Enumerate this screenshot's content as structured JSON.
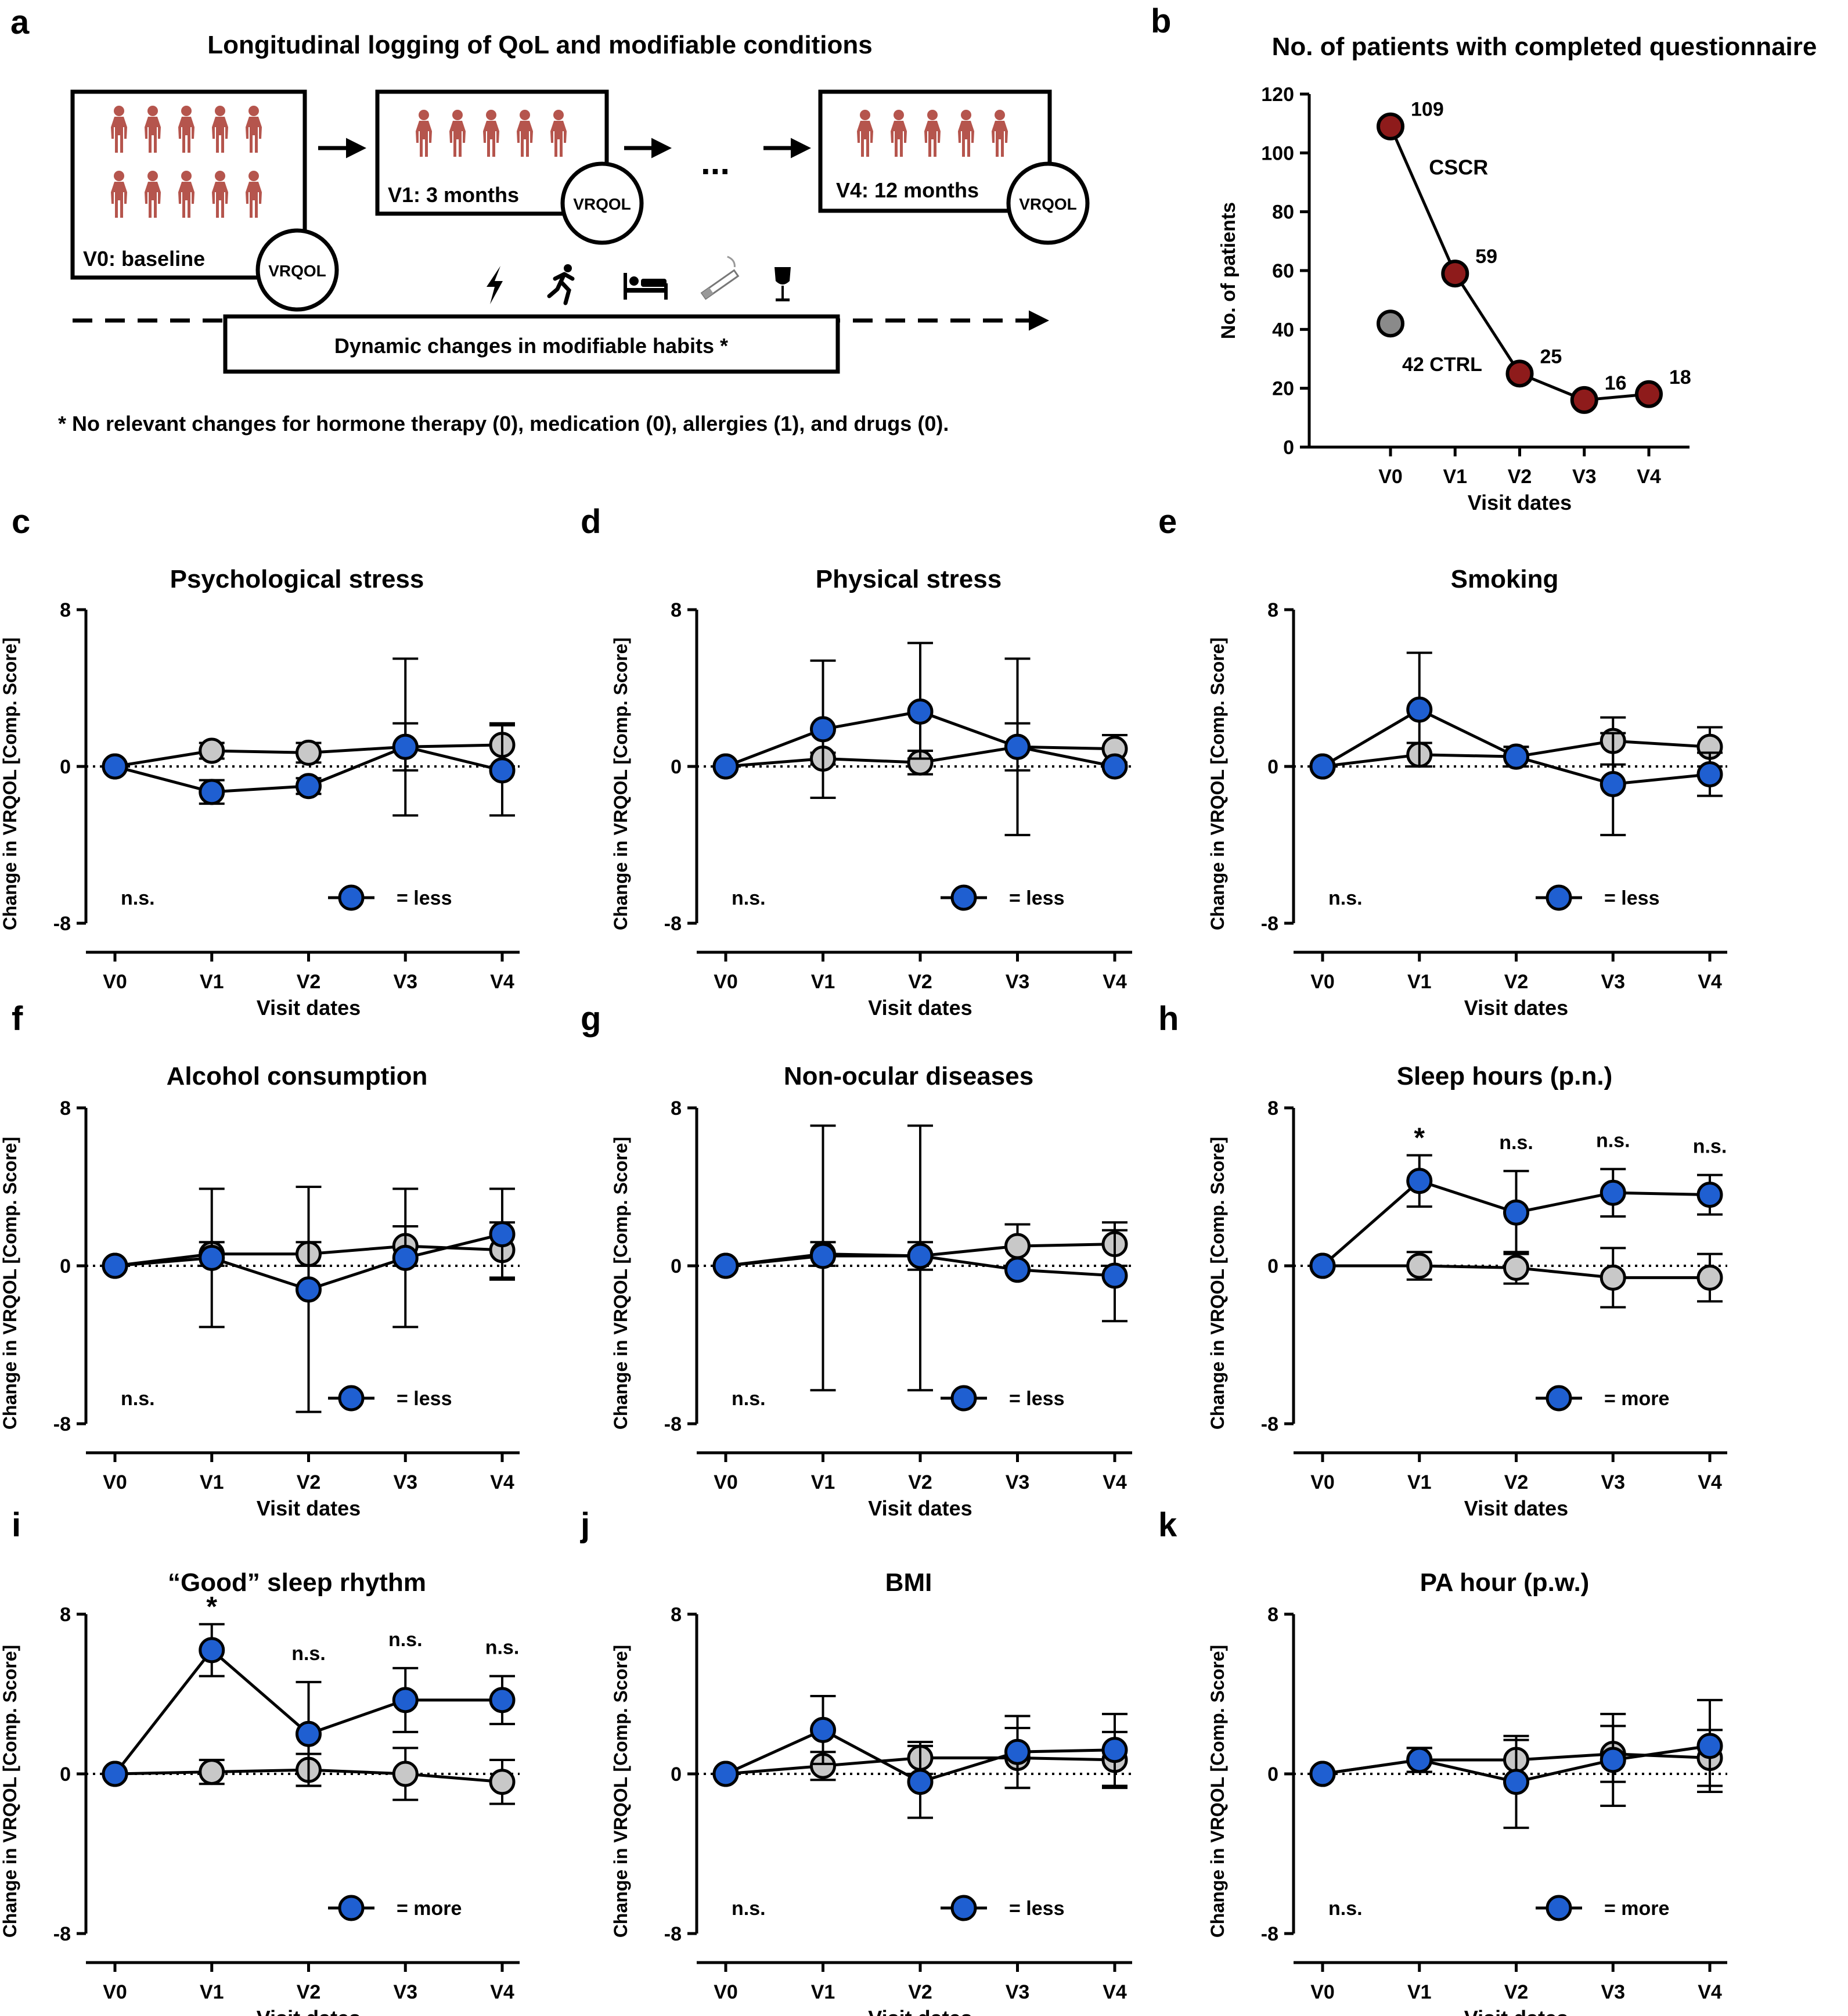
{
  "panel_a": {
    "letter": "a",
    "title": "Longitudinal logging of QoL and modifiable conditions",
    "boxes": [
      {
        "label": "V0: baseline",
        "badge": "VRQOL",
        "figures": 10
      },
      {
        "label": "V1: 3 months",
        "badge": "VRQOL",
        "figures": 5
      },
      {
        "label": "V4:  12 months",
        "badge": "VRQOL",
        "figures": 5
      }
    ],
    "ellipsis": "...",
    "habit_icons": [
      "lightning-icon",
      "running-person-icon",
      "bed-icon",
      "cigarette-icon",
      "wine-glass-icon"
    ],
    "habits_label": "Dynamic changes in modifiable habits *",
    "footnote": "* No relevant changes for hormone therapy (0), medication (0), allergies (1), and drugs (0).",
    "colors": {
      "figure": "#b5554d"
    }
  },
  "chart_data": [
    {
      "id": "b",
      "letter": "b",
      "type": "line",
      "title": "No. of patients with completed questionnaire",
      "xlabel": "Visit dates",
      "ylabel": "No. of patients",
      "categories": [
        "V0",
        "V1",
        "V2",
        "V3",
        "V4"
      ],
      "yticks": [
        "0",
        "20",
        "40",
        "60",
        "80",
        "100",
        "120"
      ],
      "ylim": [
        0,
        120
      ],
      "series": [
        {
          "name": "CSCR",
          "values": [
            109,
            59,
            25,
            16,
            18
          ],
          "labels": [
            "109",
            "59",
            "25",
            "16",
            "18"
          ],
          "color": "#8e1b1b"
        }
      ],
      "ctrl_point": {
        "value": 42,
        "label": "42 CTRL",
        "color": "#8a8a8a"
      },
      "series_label": "CSCR"
    },
    {
      "id": "c",
      "letter": "c",
      "type": "line",
      "title": "Psychological stress",
      "xlabel": "Visit dates",
      "ylabel": "Change in VRQOL [Comp. Score]",
      "categories": [
        "V0",
        "V1",
        "V2",
        "V3",
        "V4"
      ],
      "yticks": [
        "-8",
        "0",
        "8"
      ],
      "ylim": [
        -8,
        8
      ],
      "series": [
        {
          "name": "CTRL",
          "color": "#c8c8c8",
          "values": [
            0,
            0.8,
            0.7,
            1.0,
            1.1
          ],
          "err_low": [
            0,
            0.4,
            0.5,
            1.2,
            1.1
          ],
          "err_high": [
            0,
            0.4,
            0.5,
            1.2,
            1.1
          ]
        },
        {
          "name": "less",
          "color": "#1f5fd1",
          "values": [
            0,
            -1.3,
            -1.0,
            1.0,
            -0.2
          ],
          "err_low": [
            0,
            0.6,
            0.4,
            3.5,
            2.3
          ],
          "err_high": [
            0,
            0.6,
            0.4,
            4.5,
            2.3
          ]
        }
      ],
      "significance": "n.s.",
      "legend_label": "= less",
      "legend_pos": "bottom-right",
      "point_marks": []
    },
    {
      "id": "d",
      "letter": "d",
      "type": "line",
      "title": "Physical stress",
      "xlabel": "Visit dates",
      "ylabel": "Change in VRQOL [Comp. Score]",
      "categories": [
        "V0",
        "V1",
        "V2",
        "V3",
        "V4"
      ],
      "yticks": [
        "-8",
        "0",
        "8"
      ],
      "ylim": [
        -8,
        8
      ],
      "series": [
        {
          "name": "CTRL",
          "color": "#c8c8c8",
          "values": [
            0,
            0.4,
            0.2,
            1.0,
            0.9
          ],
          "err_low": [
            0,
            0.3,
            0.6,
            1.2,
            0.7
          ],
          "err_high": [
            0,
            0.3,
            0.6,
            1.2,
            0.7
          ]
        },
        {
          "name": "less",
          "color": "#1f5fd1",
          "values": [
            0,
            1.9,
            2.8,
            1.0,
            0.0
          ],
          "err_low": [
            0,
            3.5,
            2.4,
            4.5,
            0
          ],
          "err_high": [
            0,
            3.5,
            3.5,
            4.5,
            0
          ]
        }
      ],
      "significance": "n.s.",
      "legend_label": "= less",
      "legend_pos": "bottom-right",
      "point_marks": []
    },
    {
      "id": "e",
      "letter": "e",
      "type": "line",
      "title": "Smoking",
      "xlabel": "Visit dates",
      "ylabel": "Change in VRQOL [Comp. Score]",
      "categories": [
        "V0",
        "V1",
        "V2",
        "V3",
        "V4"
      ],
      "yticks": [
        "-8",
        "0",
        "8"
      ],
      "ylim": [
        -8,
        8
      ],
      "series": [
        {
          "name": "CTRL",
          "color": "#c8c8c8",
          "values": [
            0,
            0.6,
            0.5,
            1.3,
            1.0
          ],
          "err_low": [
            0,
            0.6,
            0.5,
            1.2,
            1.0
          ],
          "err_high": [
            0,
            0.6,
            0.5,
            1.2,
            1.0
          ]
        },
        {
          "name": "less",
          "color": "#1f5fd1",
          "values": [
            0,
            2.9,
            0.5,
            -0.9,
            -0.4
          ],
          "err_low": [
            0,
            2.9,
            0.5,
            2.6,
            1.1
          ],
          "err_high": [
            0,
            2.9,
            0.5,
            2.6,
            1.1
          ]
        }
      ],
      "significance": "n.s.",
      "legend_label": "= less",
      "legend_pos": "bottom-right",
      "point_marks": []
    },
    {
      "id": "f",
      "letter": "f",
      "type": "line",
      "title": "Alcohol consumption",
      "xlabel": "Visit dates",
      "ylabel": "Change in VRQOL [Comp. Score]",
      "categories": [
        "V0",
        "V1",
        "V2",
        "V3",
        "V4"
      ],
      "yticks": [
        "-8",
        "0",
        "8"
      ],
      "ylim": [
        -8,
        8
      ],
      "series": [
        {
          "name": "CTRL",
          "color": "#c8c8c8",
          "values": [
            0,
            0.6,
            0.6,
            1.0,
            0.8
          ],
          "err_low": [
            0,
            0.6,
            0.6,
            1.0,
            1.4
          ],
          "err_high": [
            0,
            0.6,
            0.6,
            1.0,
            1.4
          ]
        },
        {
          "name": "less",
          "color": "#1f5fd1",
          "values": [
            0,
            0.4,
            -1.2,
            0.4,
            1.6
          ],
          "err_low": [
            0,
            3.5,
            6.2,
            3.5,
            2.3
          ],
          "err_high": [
            0,
            3.5,
            5.2,
            3.5,
            2.3
          ]
        }
      ],
      "significance": "n.s.",
      "legend_label": "= less",
      "legend_pos": "bottom-right",
      "point_marks": []
    },
    {
      "id": "g",
      "letter": "g",
      "type": "line",
      "title": "Non-ocular diseases",
      "xlabel": "Visit dates",
      "ylabel": "Change in VRQOL [Comp. Score]",
      "categories": [
        "V0",
        "V1",
        "V2",
        "V3",
        "V4"
      ],
      "yticks": [
        "-8",
        "0",
        "8"
      ],
      "ylim": [
        -8,
        8
      ],
      "series": [
        {
          "name": "CTRL",
          "color": "#c8c8c8",
          "values": [
            0,
            0.6,
            0.5,
            1.0,
            1.1
          ],
          "err_low": [
            0,
            0.6,
            0.7,
            1.1,
            1.1
          ],
          "err_high": [
            0,
            0.6,
            0.7,
            1.1,
            1.1
          ]
        },
        {
          "name": "less",
          "color": "#1f5fd1",
          "values": [
            0,
            0.5,
            0.5,
            -0.2,
            -0.5
          ],
          "err_low": [
            0,
            6.8,
            6.8,
            0,
            2.3
          ],
          "err_high": [
            0,
            6.6,
            6.6,
            0,
            2.3
          ]
        }
      ],
      "significance": "n.s.",
      "legend_label": "= less",
      "legend_pos": "bottom-right",
      "point_marks": []
    },
    {
      "id": "h",
      "letter": "h",
      "type": "line",
      "title": "Sleep hours (p.n.)",
      "xlabel": "Visit dates",
      "ylabel": "Change in VRQOL [Comp. Score]",
      "categories": [
        "V0",
        "V1",
        "V2",
        "V3",
        "V4"
      ],
      "yticks": [
        "-8",
        "0",
        "8"
      ],
      "ylim": [
        -8,
        8
      ],
      "series": [
        {
          "name": "CTRL",
          "color": "#c8c8c8",
          "values": [
            0,
            0.0,
            -0.1,
            -0.6,
            -0.6
          ],
          "err_low": [
            0,
            0.7,
            0.8,
            1.5,
            1.2
          ],
          "err_high": [
            0,
            0.7,
            0.8,
            1.5,
            1.2
          ]
        },
        {
          "name": "more",
          "color": "#1f5fd1",
          "values": [
            0,
            4.3,
            2.7,
            3.7,
            3.6
          ],
          "err_low": [
            0,
            1.3,
            2.1,
            1.2,
            1.0
          ],
          "err_high": [
            0,
            1.3,
            2.1,
            1.2,
            1.0
          ]
        }
      ],
      "significance": "",
      "legend_label": "= more",
      "legend_pos": "bottom-right",
      "point_marks": [
        "",
        "*",
        "n.s.",
        "n.s.",
        "n.s."
      ]
    },
    {
      "id": "i",
      "letter": "i",
      "type": "line",
      "title": "“Good” sleep rhythm",
      "xlabel": "Visit dates",
      "ylabel": "Change in VRQOL [Comp. Score]",
      "categories": [
        "V0",
        "V1",
        "V2",
        "V3",
        "V4"
      ],
      "yticks": [
        "-8",
        "0",
        "8"
      ],
      "ylim": [
        -8,
        8
      ],
      "series": [
        {
          "name": "CTRL",
          "color": "#c8c8c8",
          "values": [
            0,
            0.1,
            0.2,
            0.0,
            -0.4
          ],
          "err_low": [
            0,
            0.6,
            0.8,
            1.3,
            1.1
          ],
          "err_high": [
            0,
            0.6,
            0.8,
            1.3,
            1.1
          ]
        },
        {
          "name": "more",
          "color": "#1f5fd1",
          "values": [
            0,
            6.2,
            2.0,
            3.7,
            3.7
          ],
          "err_low": [
            0,
            1.3,
            2.6,
            1.6,
            1.2
          ],
          "err_high": [
            0,
            1.3,
            2.6,
            1.6,
            1.2
          ]
        }
      ],
      "significance": "",
      "legend_label": "= more",
      "legend_pos": "bottom-right",
      "point_marks": [
        "",
        "*",
        "n.s.",
        "n.s.",
        "n.s."
      ]
    },
    {
      "id": "j",
      "letter": "j",
      "type": "line",
      "title": "BMI",
      "xlabel": "Visit dates",
      "ylabel": "Change in VRQOL [Comp. Score]",
      "categories": [
        "V0",
        "V1",
        "V2",
        "V3",
        "V4"
      ],
      "yticks": [
        "-8",
        "0",
        "8"
      ],
      "ylim": [
        -8,
        8
      ],
      "series": [
        {
          "name": "CTRL",
          "color": "#c8c8c8",
          "values": [
            0,
            0.4,
            0.8,
            0.8,
            0.7
          ],
          "err_low": [
            0,
            0.7,
            0.8,
            1.5,
            1.4
          ],
          "err_high": [
            0,
            0.7,
            0.8,
            1.5,
            1.4
          ]
        },
        {
          "name": "less",
          "color": "#1f5fd1",
          "values": [
            0,
            2.2,
            -0.4,
            1.1,
            1.2
          ],
          "err_low": [
            0,
            1.7,
            1.8,
            1.8,
            1.8
          ],
          "err_high": [
            0,
            1.7,
            1.8,
            1.8,
            1.8
          ]
        }
      ],
      "significance": "n.s.",
      "legend_label": "= less",
      "legend_pos": "bottom-right",
      "point_marks": []
    },
    {
      "id": "k",
      "letter": "k",
      "type": "line",
      "title": "PA hour (p.w.)",
      "xlabel": "Visit dates",
      "ylabel": "Change in VRQOL [Comp. Score]",
      "categories": [
        "V0",
        "V1",
        "V2",
        "V3",
        "V4"
      ],
      "yticks": [
        "-8",
        "0",
        "8"
      ],
      "ylim": [
        -8,
        8
      ],
      "series": [
        {
          "name": "CTRL",
          "color": "#c8c8c8",
          "values": [
            0,
            0.7,
            0.7,
            1.0,
            0.8
          ],
          "err_low": [
            0,
            0.6,
            1.0,
            1.4,
            1.4
          ],
          "err_high": [
            0,
            0.6,
            1.0,
            1.4,
            1.4
          ]
        },
        {
          "name": "more",
          "color": "#1f5fd1",
          "values": [
            0,
            0.7,
            -0.4,
            0.7,
            1.4
          ],
          "err_low": [
            0,
            0.6,
            2.3,
            2.3,
            2.3
          ],
          "err_high": [
            0,
            0.6,
            2.3,
            2.3,
            2.3
          ]
        }
      ],
      "significance": "n.s.",
      "legend_label": "= more",
      "legend_pos": "bottom-right",
      "point_marks": []
    }
  ]
}
